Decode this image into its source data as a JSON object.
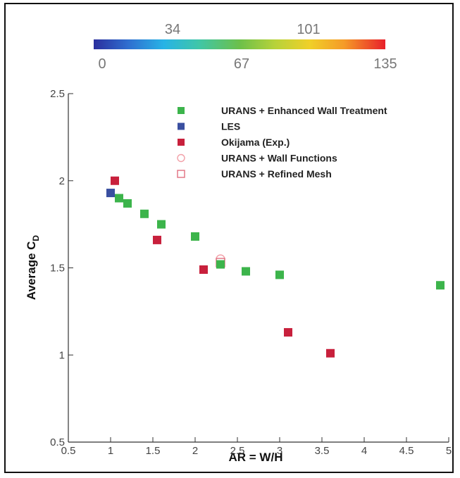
{
  "chart_data": {
    "type": "scatter",
    "xlabel": "AR = W/H",
    "ylabel_main": "Average C",
    "ylabel_sub": "D",
    "xlim": [
      0.5,
      5
    ],
    "ylim": [
      0.5,
      2.5
    ],
    "xticks": [
      "0.5",
      "1",
      "1.5",
      "2",
      "2.5",
      "3",
      "3.5",
      "4",
      "4.5",
      "5"
    ],
    "yticks": [
      "0.5",
      "1",
      "1.5",
      "2",
      "2.5"
    ],
    "grid": false,
    "legend_position": "top-right",
    "colorbar": {
      "range": [
        0,
        135
      ],
      "labels_bottom": [
        "0",
        "67",
        "135"
      ],
      "labels_top": [
        "34",
        "101"
      ]
    },
    "series": [
      {
        "name": "URANS + Enhanced Wall Treatment",
        "marker": "filled-square",
        "color": "#3cb44b",
        "x": [
          1.1,
          1.2,
          1.4,
          1.6,
          2.0,
          2.3,
          2.6,
          3.0,
          4.9
        ],
        "y": [
          1.9,
          1.87,
          1.81,
          1.75,
          1.68,
          1.52,
          1.48,
          1.46,
          1.4
        ]
      },
      {
        "name": "LES",
        "marker": "filled-square",
        "color": "#3a4fa0",
        "x": [
          1.0
        ],
        "y": [
          1.93
        ]
      },
      {
        "name": "Okijama (Exp.)",
        "marker": "filled-square",
        "color": "#c8203c",
        "x": [
          1.05,
          1.55,
          2.1,
          3.1,
          3.6
        ],
        "y": [
          2.0,
          1.66,
          1.49,
          1.13,
          1.01
        ]
      },
      {
        "name": "URANS + Wall Functions",
        "marker": "open-circle",
        "color": "#f2a0a8",
        "x": [
          2.3
        ],
        "y": [
          1.55
        ]
      },
      {
        "name": "URANS + Refined Mesh",
        "marker": "open-square",
        "color": "#e07080",
        "x": [
          2.3
        ],
        "y": [
          1.53
        ]
      }
    ]
  }
}
